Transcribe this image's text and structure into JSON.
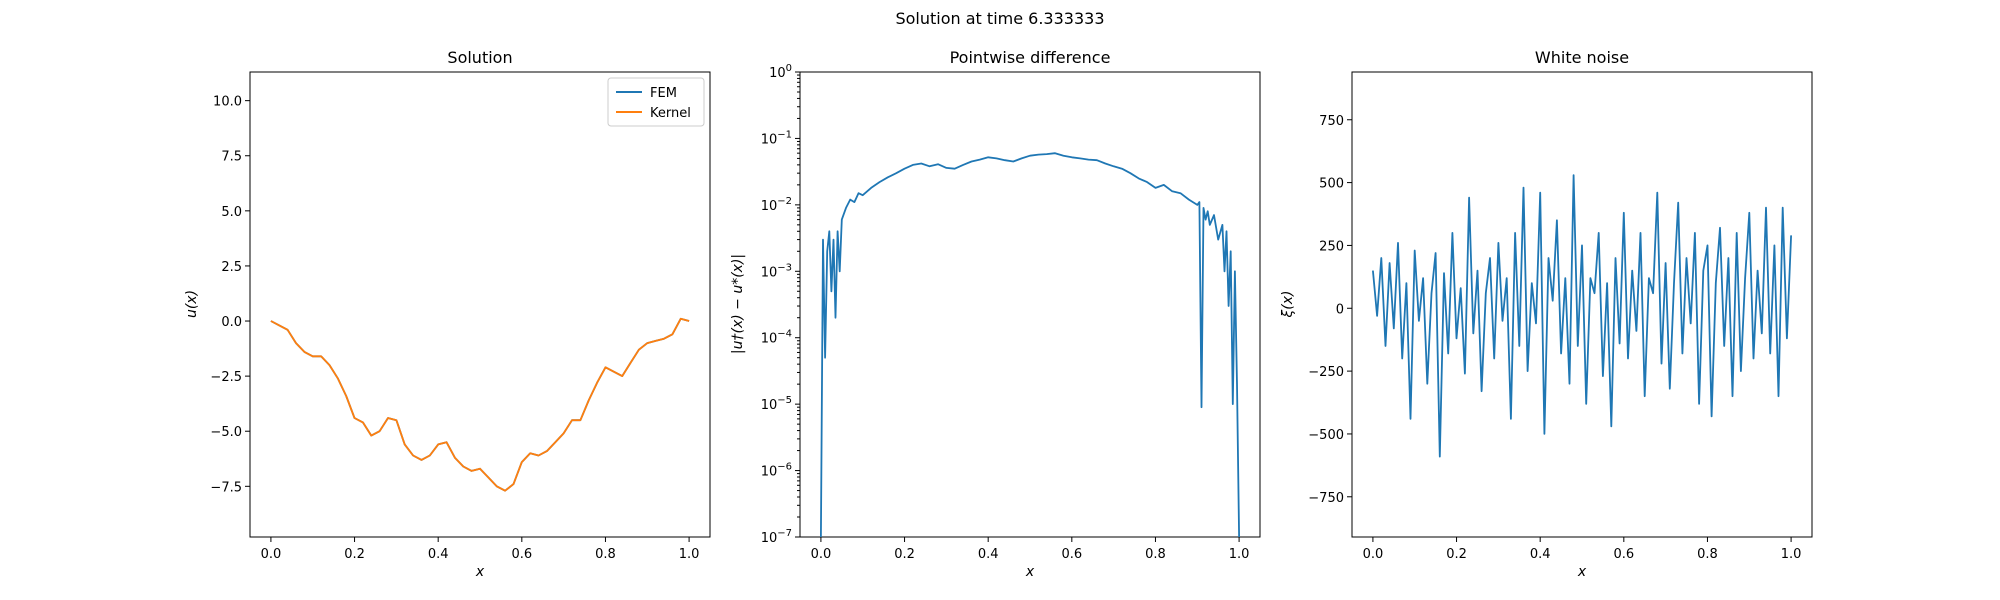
{
  "suptitle": "Solution at time 6.333333",
  "colors": {
    "fem": "#1f77b4",
    "kernel": "#ff7f0e",
    "diff": "#1f77b4",
    "noise": "#1f77b4"
  },
  "chart_data": [
    {
      "type": "line",
      "title": "Solution",
      "xlabel": "x",
      "ylabel": "u(x)",
      "xlim": [
        -0.05,
        1.05
      ],
      "ylim": [
        -9.8,
        11.3
      ],
      "xticks": [
        0.0,
        0.2,
        0.4,
        0.6,
        0.8,
        1.0
      ],
      "xtick_labels": [
        "0.0",
        "0.2",
        "0.4",
        "0.6",
        "0.8",
        "1.0"
      ],
      "yticks": [
        -7.5,
        -5.0,
        -2.5,
        0.0,
        2.5,
        5.0,
        7.5,
        10.0
      ],
      "ytick_labels": [
        "−7.5",
        "−5.0",
        "−2.5",
        "0.0",
        "2.5",
        "5.0",
        "7.5",
        "10.0"
      ],
      "legend": [
        "FEM",
        "Kernel"
      ],
      "legend_position": "top-right",
      "x": [
        0.0,
        0.02,
        0.04,
        0.06,
        0.08,
        0.1,
        0.12,
        0.14,
        0.16,
        0.18,
        0.2,
        0.22,
        0.24,
        0.26,
        0.28,
        0.3,
        0.32,
        0.34,
        0.36,
        0.38,
        0.4,
        0.42,
        0.44,
        0.46,
        0.48,
        0.5,
        0.52,
        0.54,
        0.56,
        0.58,
        0.6,
        0.62,
        0.64,
        0.66,
        0.68,
        0.7,
        0.72,
        0.74,
        0.76,
        0.78,
        0.8,
        0.82,
        0.84,
        0.86,
        0.88,
        0.9,
        0.92,
        0.94,
        0.96,
        0.98,
        1.0
      ],
      "series": [
        {
          "name": "FEM",
          "values": [
            0.0,
            -0.2,
            -0.4,
            -1.0,
            -1.4,
            -1.6,
            -1.6,
            -2.0,
            -2.6,
            -3.4,
            -4.4,
            -4.6,
            -5.2,
            -5.0,
            -4.4,
            -4.5,
            -5.6,
            -6.1,
            -6.3,
            -6.1,
            -5.6,
            -5.5,
            -6.2,
            -6.6,
            -6.8,
            -6.7,
            -7.1,
            -7.5,
            -7.7,
            -7.4,
            -6.4,
            -6.0,
            -6.1,
            -5.9,
            -5.5,
            -5.1,
            -4.5,
            -4.5,
            -3.6,
            -2.8,
            -2.1,
            -2.3,
            -2.5,
            -1.9,
            -1.3,
            -1.0,
            -0.9,
            -0.8,
            -0.6,
            0.1,
            0.0
          ]
        },
        {
          "name": "Kernel",
          "values": [
            0.0,
            -0.2,
            -0.4,
            -1.0,
            -1.4,
            -1.6,
            -1.6,
            -2.0,
            -2.6,
            -3.4,
            -4.4,
            -4.6,
            -5.2,
            -5.0,
            -4.4,
            -4.5,
            -5.6,
            -6.1,
            -6.3,
            -6.1,
            -5.6,
            -5.5,
            -6.2,
            -6.6,
            -6.8,
            -6.7,
            -7.1,
            -7.5,
            -7.7,
            -7.4,
            -6.4,
            -6.0,
            -6.1,
            -5.9,
            -5.5,
            -5.1,
            -4.5,
            -4.5,
            -3.6,
            -2.8,
            -2.1,
            -2.3,
            -2.5,
            -1.9,
            -1.3,
            -1.0,
            -0.9,
            -0.8,
            -0.6,
            0.1,
            0.0
          ]
        }
      ]
    },
    {
      "type": "line",
      "title": "Pointwise difference",
      "xlabel": "x",
      "ylabel": "|u†(x) − u*(x)|",
      "yscale": "log",
      "xlim": [
        -0.05,
        1.05
      ],
      "ylim": [
        1e-07,
        1
      ],
      "xticks": [
        0.0,
        0.2,
        0.4,
        0.6,
        0.8,
        1.0
      ],
      "xtick_labels": [
        "0.0",
        "0.2",
        "0.4",
        "0.6",
        "0.8",
        "1.0"
      ],
      "ytick_exponents": [
        -7,
        -6,
        -5,
        -4,
        -3,
        -2,
        -1,
        0
      ],
      "x": [
        0.0,
        0.005,
        0.01,
        0.015,
        0.02,
        0.025,
        0.03,
        0.035,
        0.04,
        0.045,
        0.05,
        0.06,
        0.07,
        0.08,
        0.09,
        0.1,
        0.12,
        0.14,
        0.16,
        0.18,
        0.2,
        0.22,
        0.24,
        0.26,
        0.28,
        0.3,
        0.32,
        0.34,
        0.36,
        0.38,
        0.4,
        0.42,
        0.44,
        0.46,
        0.48,
        0.5,
        0.52,
        0.54,
        0.56,
        0.58,
        0.6,
        0.62,
        0.64,
        0.66,
        0.68,
        0.7,
        0.72,
        0.74,
        0.76,
        0.78,
        0.8,
        0.82,
        0.84,
        0.86,
        0.88,
        0.9,
        0.905,
        0.91,
        0.915,
        0.92,
        0.925,
        0.93,
        0.94,
        0.95,
        0.96,
        0.965,
        0.97,
        0.975,
        0.98,
        0.985,
        0.99,
        0.995,
        1.0
      ],
      "values": [
        1e-07,
        0.003,
        5e-05,
        0.002,
        0.004,
        0.0005,
        0.003,
        0.0002,
        0.004,
        0.001,
        0.006,
        0.009,
        0.012,
        0.011,
        0.015,
        0.014,
        0.018,
        0.022,
        0.026,
        0.03,
        0.035,
        0.04,
        0.042,
        0.038,
        0.041,
        0.036,
        0.035,
        0.04,
        0.045,
        0.048,
        0.052,
        0.05,
        0.047,
        0.045,
        0.05,
        0.055,
        0.057,
        0.058,
        0.06,
        0.055,
        0.052,
        0.05,
        0.048,
        0.047,
        0.042,
        0.038,
        0.035,
        0.03,
        0.025,
        0.022,
        0.018,
        0.02,
        0.016,
        0.015,
        0.012,
        0.01,
        0.011,
        9e-06,
        0.009,
        0.006,
        0.008,
        0.005,
        0.007,
        0.003,
        0.005,
        0.001,
        0.004,
        0.0003,
        0.002,
        1e-05,
        0.001,
        2e-05,
        1e-07
      ]
    },
    {
      "type": "line",
      "title": "White noise",
      "xlabel": "x",
      "ylabel": "ξ(x)",
      "xlim": [
        -0.05,
        1.05
      ],
      "ylim": [
        -910,
        940
      ],
      "xticks": [
        0.0,
        0.2,
        0.4,
        0.6,
        0.8,
        1.0
      ],
      "xtick_labels": [
        "0.0",
        "0.2",
        "0.4",
        "0.6",
        "0.8",
        "1.0"
      ],
      "yticks": [
        -750,
        -500,
        -250,
        0,
        250,
        500,
        750
      ],
      "ytick_labels": [
        "−750",
        "−500",
        "−250",
        "0",
        "250",
        "500",
        "750"
      ],
      "x": [
        0.0,
        0.01,
        0.02,
        0.03,
        0.04,
        0.05,
        0.06,
        0.07,
        0.08,
        0.09,
        0.1,
        0.11,
        0.12,
        0.13,
        0.14,
        0.15,
        0.16,
        0.17,
        0.18,
        0.19,
        0.2,
        0.21,
        0.22,
        0.23,
        0.24,
        0.25,
        0.26,
        0.27,
        0.28,
        0.29,
        0.3,
        0.31,
        0.32,
        0.33,
        0.34,
        0.35,
        0.36,
        0.37,
        0.38,
        0.39,
        0.4,
        0.41,
        0.42,
        0.43,
        0.44,
        0.45,
        0.46,
        0.47,
        0.48,
        0.49,
        0.5,
        0.51,
        0.52,
        0.53,
        0.54,
        0.55,
        0.56,
        0.57,
        0.58,
        0.59,
        0.6,
        0.61,
        0.62,
        0.63,
        0.64,
        0.65,
        0.66,
        0.67,
        0.68,
        0.69,
        0.7,
        0.71,
        0.72,
        0.73,
        0.74,
        0.75,
        0.76,
        0.77,
        0.78,
        0.79,
        0.8,
        0.81,
        0.82,
        0.83,
        0.84,
        0.85,
        0.86,
        0.87,
        0.88,
        0.89,
        0.9,
        0.91,
        0.92,
        0.93,
        0.94,
        0.95,
        0.96,
        0.97,
        0.98,
        0.99,
        1.0
      ],
      "values": [
        150,
        -30,
        200,
        -150,
        180,
        -80,
        260,
        -200,
        100,
        -440,
        230,
        -50,
        120,
        -300,
        60,
        220,
        -590,
        140,
        -180,
        300,
        -120,
        80,
        -260,
        440,
        -100,
        150,
        -330,
        60,
        200,
        -200,
        260,
        -50,
        120,
        -440,
        300,
        -150,
        480,
        -250,
        100,
        -60,
        460,
        -500,
        200,
        30,
        350,
        -180,
        120,
        -300,
        530,
        -150,
        250,
        -380,
        120,
        60,
        300,
        -270,
        100,
        -470,
        200,
        -140,
        380,
        -200,
        150,
        -90,
        300,
        -350,
        120,
        60,
        460,
        -220,
        180,
        -320,
        100,
        420,
        -180,
        200,
        -60,
        300,
        -380,
        150,
        250,
        -430,
        100,
        320,
        -150,
        200,
        -350,
        300,
        -250,
        120,
        380,
        -200,
        150,
        -100,
        400,
        -180,
        250,
        -350,
        400,
        -120,
        290
      ]
    }
  ]
}
